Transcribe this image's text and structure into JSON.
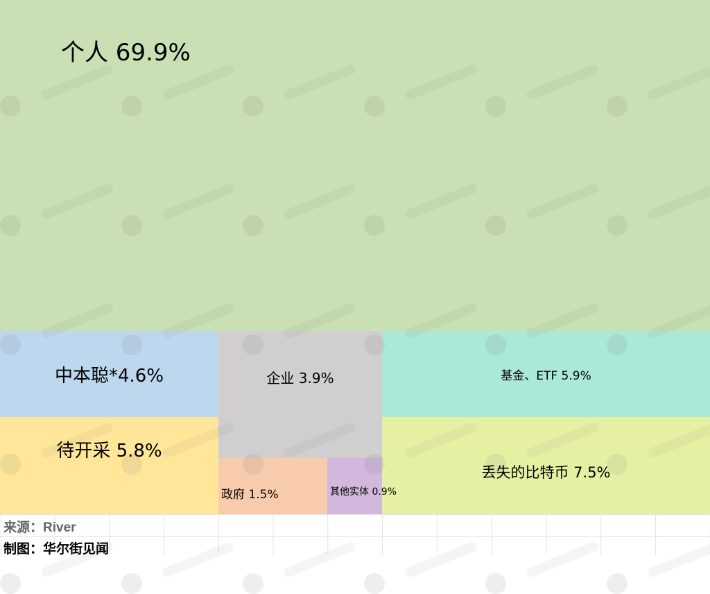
{
  "chart_data": {
    "type": "treemap",
    "unit": "%",
    "items": [
      {
        "label": "个人",
        "value": 69.9,
        "display": "个人 69.9%",
        "color": "#c8e0b4"
      },
      {
        "label": "中本聪*",
        "value": 4.6,
        "display": "中本聪*4.6%",
        "color": "#bdd7ee"
      },
      {
        "label": "待开采",
        "value": 5.8,
        "display": "待开采 5.8%",
        "color": "#ffe699"
      },
      {
        "label": "企业",
        "value": 3.9,
        "display": "企业 3.9%",
        "color": "#d0cece"
      },
      {
        "label": "政府",
        "value": 1.5,
        "display": "政府 1.5%",
        "color": "#f8cbad"
      },
      {
        "label": "其他实体",
        "value": 0.9,
        "display": "其他实体 0.9%",
        "color": "#d2b8dc"
      },
      {
        "label": "基金、ETF",
        "value": 5.9,
        "display": "基金、ETF 5.9%",
        "color": "#aae8d8"
      },
      {
        "label": "丢失的比特币",
        "value": 7.5,
        "display": "丢失的比特币 7.5%",
        "color": "#e6f0a3"
      }
    ]
  },
  "footer": {
    "source": "来源：River",
    "credit": "制图：华尔街见闻"
  },
  "watermark": "华尔街见闻"
}
